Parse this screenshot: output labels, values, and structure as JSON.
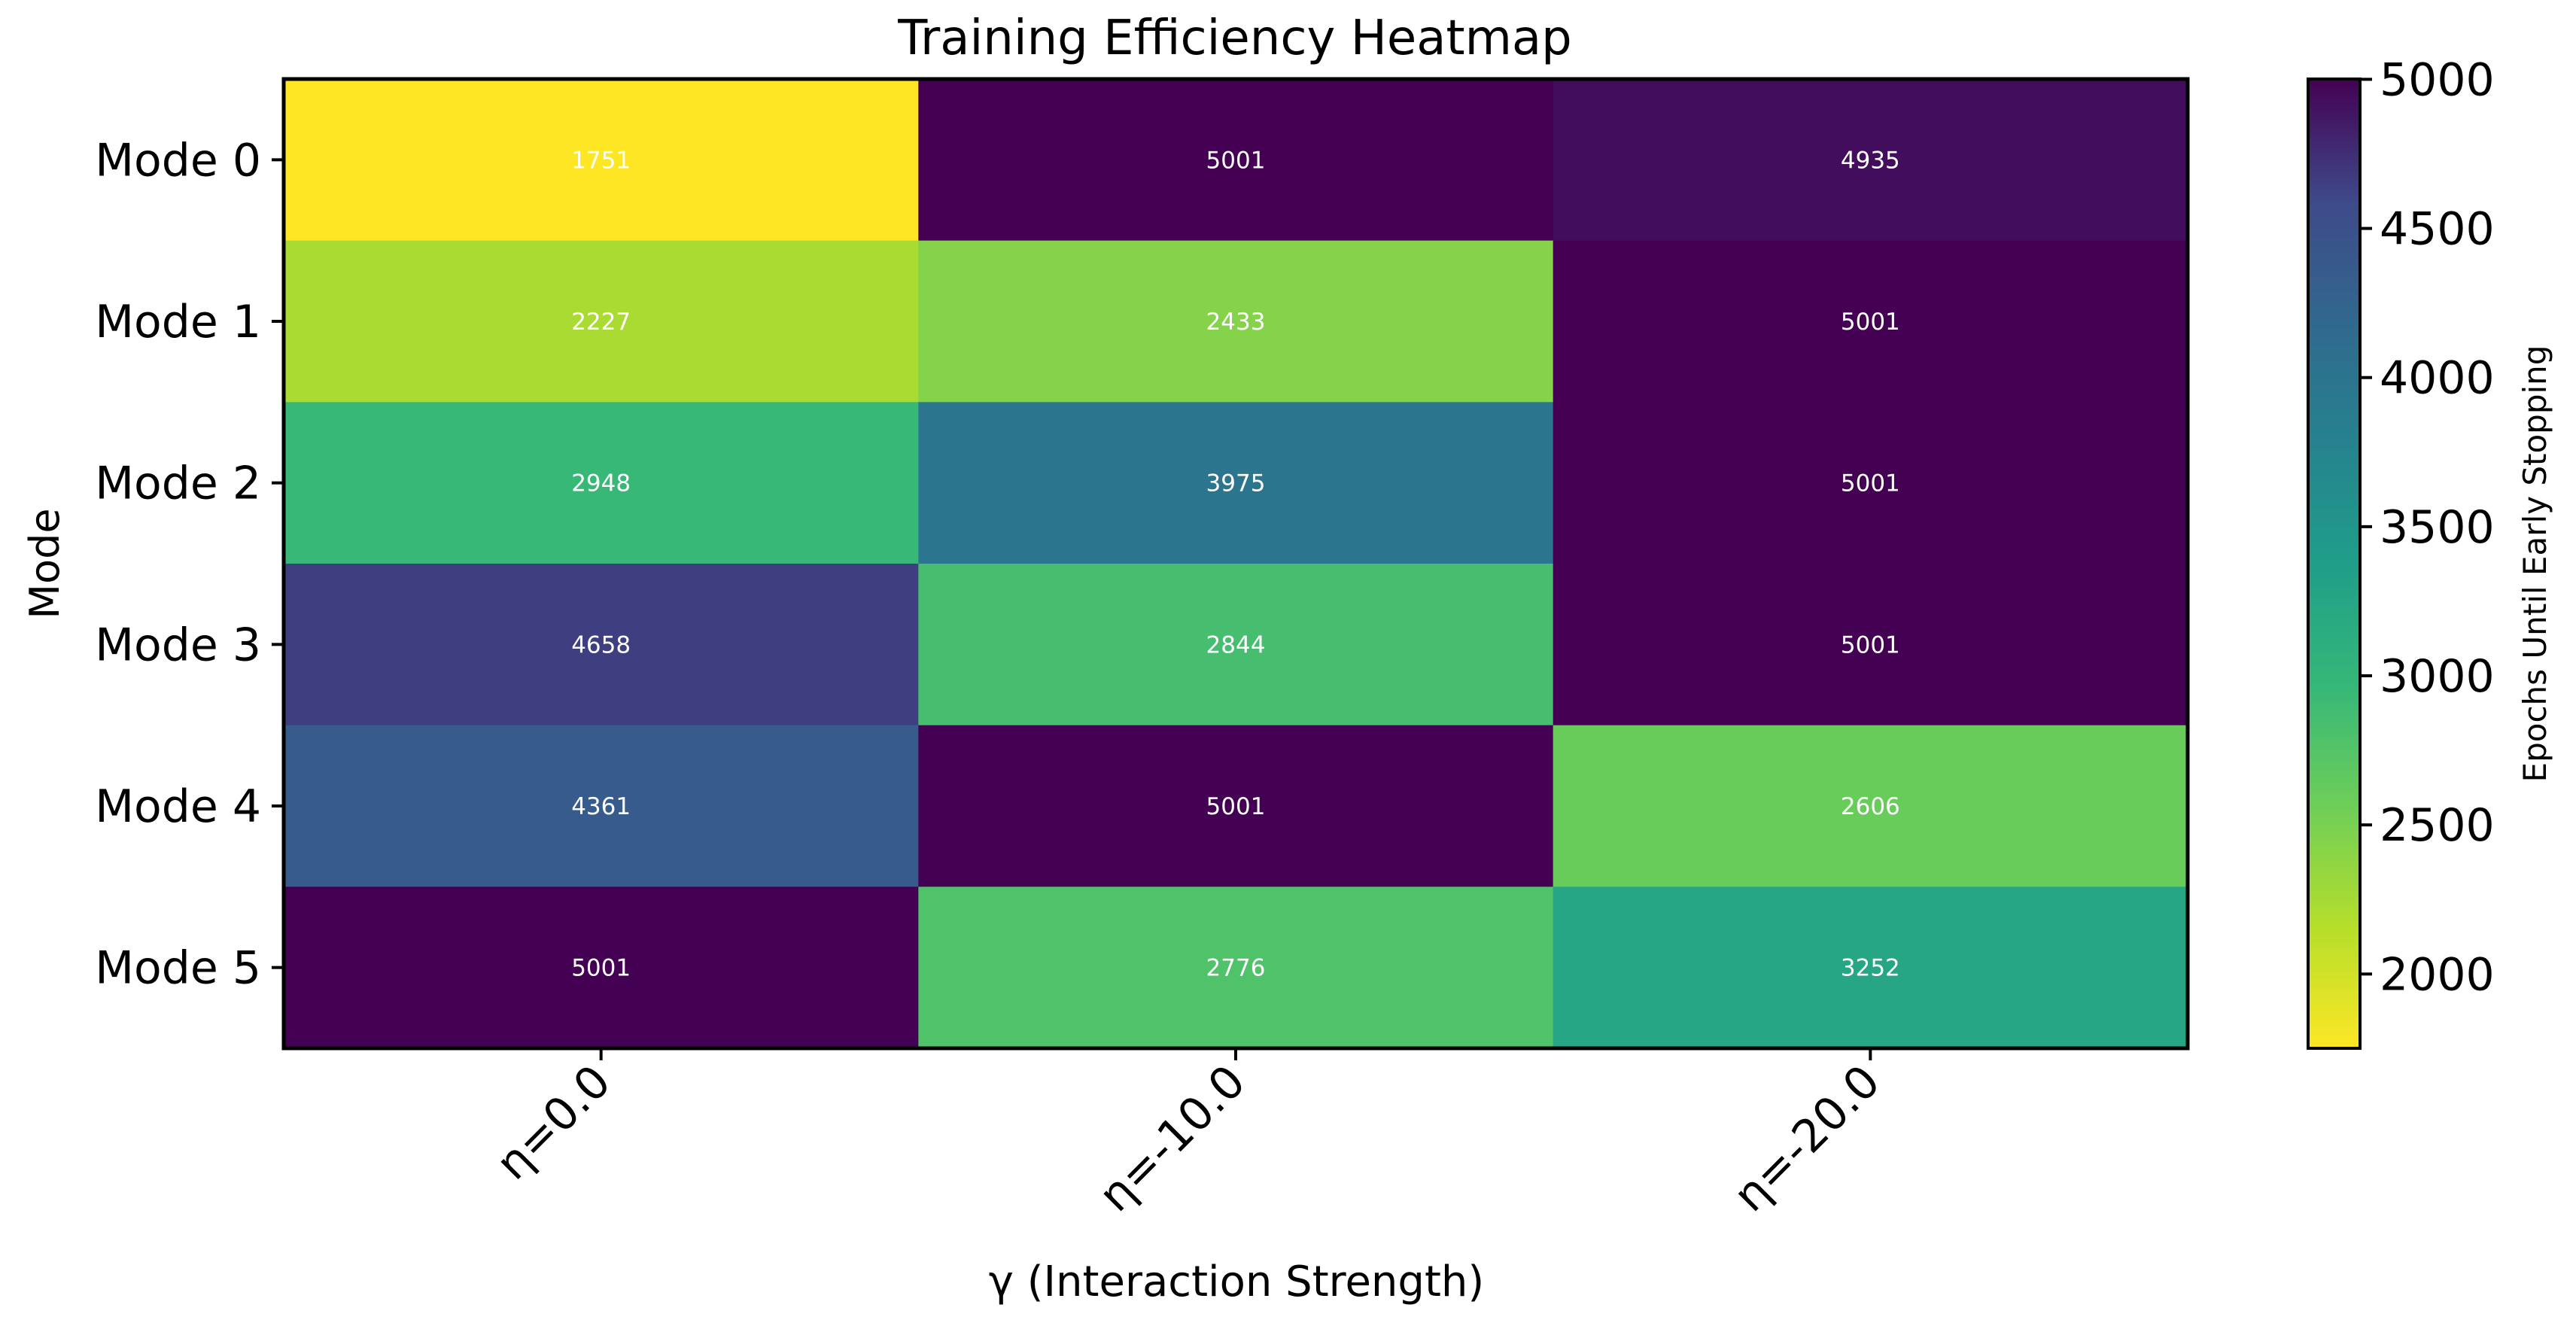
{
  "chart_data": {
    "type": "heatmap",
    "title": "Training Efficiency Heatmap",
    "xlabel": "γ (Interaction Strength)",
    "ylabel": "Mode",
    "x_categories": [
      "η=0.0",
      "η=-10.0",
      "η=-20.0"
    ],
    "y_categories": [
      "Mode 0",
      "Mode 1",
      "Mode 2",
      "Mode 3",
      "Mode 4",
      "Mode 5"
    ],
    "values": [
      [
        1751,
        5001,
        4935
      ],
      [
        2227,
        2433,
        5001
      ],
      [
        2948,
        3975,
        5001
      ],
      [
        4658,
        2844,
        5001
      ],
      [
        4361,
        5001,
        2606
      ],
      [
        5001,
        2776,
        3252
      ]
    ],
    "colorbar": {
      "label": "Epochs Until Early Stopping",
      "range": [
        1751,
        5001
      ],
      "ticks": [
        2000,
        2500,
        3000,
        3500,
        4000,
        4500,
        5000
      ],
      "colormap": "viridis_r"
    }
  }
}
